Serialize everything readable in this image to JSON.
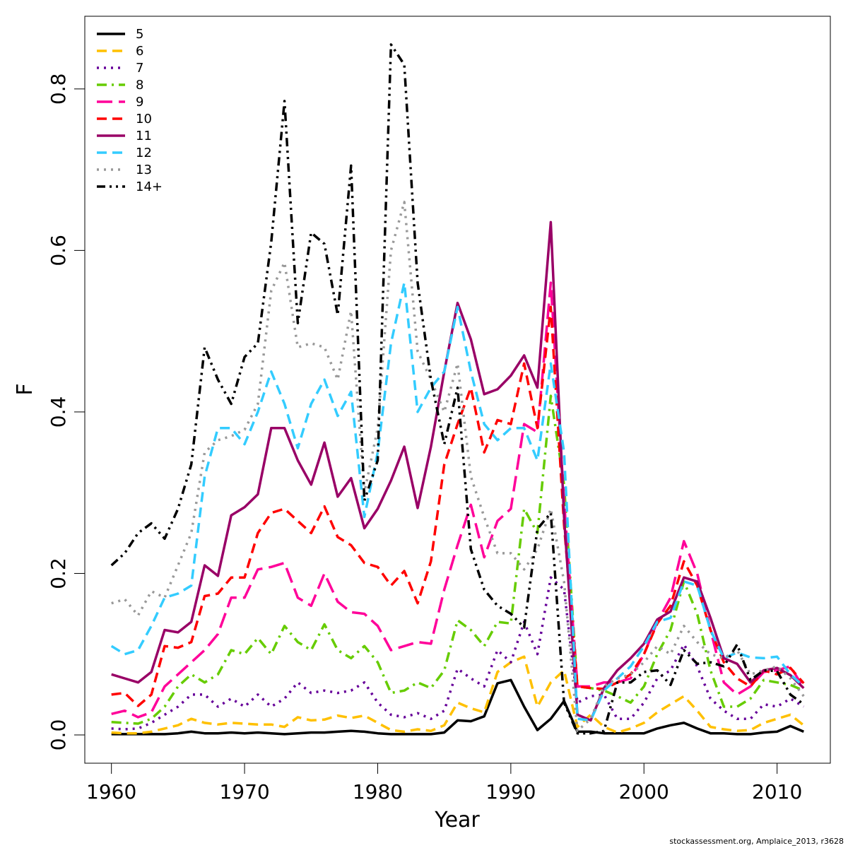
{
  "chart_data": {
    "type": "line",
    "xlabel": "Year",
    "ylabel": "F",
    "xlim": [
      1958,
      2014
    ],
    "ylim": [
      -0.035,
      0.89
    ],
    "x_ticks": [
      1960,
      1970,
      1980,
      1990,
      2000,
      2010
    ],
    "y_ticks": [
      0.0,
      0.2,
      0.4,
      0.6,
      0.8
    ],
    "y_tick_labels": [
      "0.0",
      "0.2",
      "0.4",
      "0.6",
      "0.8"
    ],
    "grid": false,
    "legend_position": "top-left",
    "footnote": "stockassessment.org, Amplaice_2013, r3628",
    "x": [
      1960,
      1961,
      1962,
      1963,
      1964,
      1965,
      1966,
      1967,
      1968,
      1969,
      1970,
      1971,
      1972,
      1973,
      1974,
      1975,
      1976,
      1977,
      1978,
      1979,
      1980,
      1981,
      1982,
      1983,
      1984,
      1985,
      1986,
      1987,
      1988,
      1989,
      1990,
      1991,
      1992,
      1993,
      1994,
      1995,
      1996,
      1997,
      1998,
      1999,
      2000,
      2001,
      2002,
      2003,
      2004,
      2005,
      2006,
      2007,
      2008,
      2009,
      2010,
      2011,
      2012
    ],
    "series": [
      {
        "name": "5",
        "color": "#000000",
        "dash": "solid",
        "values": [
          0.001,
          0.001,
          0.001,
          0.001,
          0.001,
          0.002,
          0.004,
          0.002,
          0.002,
          0.003,
          0.002,
          0.003,
          0.002,
          0.001,
          0.002,
          0.003,
          0.003,
          0.004,
          0.005,
          0.004,
          0.002,
          0.001,
          0.001,
          0.001,
          0.001,
          0.003,
          0.018,
          0.017,
          0.023,
          0.064,
          0.068,
          0.035,
          0.006,
          0.02,
          0.042,
          0.004,
          0.004,
          0.002,
          0.002,
          0.002,
          0.002,
          0.008,
          0.012,
          0.015,
          0.008,
          0.002,
          0.002,
          0.001,
          0.001,
          0.003,
          0.004,
          0.011,
          0.004
        ]
      },
      {
        "name": "6",
        "color": "#ffc000",
        "dash": "dash",
        "values": [
          0.003,
          0.002,
          0.002,
          0.004,
          0.008,
          0.012,
          0.02,
          0.015,
          0.013,
          0.015,
          0.014,
          0.013,
          0.013,
          0.01,
          0.022,
          0.018,
          0.019,
          0.024,
          0.021,
          0.024,
          0.015,
          0.006,
          0.004,
          0.007,
          0.005,
          0.012,
          0.04,
          0.033,
          0.028,
          0.078,
          0.09,
          0.097,
          0.035,
          0.065,
          0.08,
          0.01,
          0.025,
          0.01,
          0.003,
          0.008,
          0.015,
          0.028,
          0.038,
          0.048,
          0.03,
          0.01,
          0.007,
          0.005,
          0.006,
          0.015,
          0.02,
          0.025,
          0.012
        ]
      },
      {
        "name": "7",
        "color": "#660099",
        "dash": "dot",
        "values": [
          0.008,
          0.007,
          0.008,
          0.015,
          0.025,
          0.035,
          0.05,
          0.05,
          0.035,
          0.045,
          0.035,
          0.05,
          0.035,
          0.045,
          0.065,
          0.052,
          0.055,
          0.052,
          0.055,
          0.065,
          0.04,
          0.025,
          0.022,
          0.027,
          0.02,
          0.03,
          0.082,
          0.07,
          0.06,
          0.105,
          0.09,
          0.14,
          0.1,
          0.195,
          0.18,
          0.04,
          0.048,
          0.05,
          0.02,
          0.02,
          0.04,
          0.07,
          0.08,
          0.112,
          0.085,
          0.045,
          0.03,
          0.02,
          0.02,
          0.038,
          0.035,
          0.045,
          0.035
        ]
      },
      {
        "name": "8",
        "color": "#66cc00",
        "dash": "dashdot",
        "values": [
          0.016,
          0.015,
          0.014,
          0.02,
          0.035,
          0.06,
          0.075,
          0.065,
          0.075,
          0.105,
          0.1,
          0.12,
          0.1,
          0.135,
          0.115,
          0.105,
          0.137,
          0.105,
          0.095,
          0.11,
          0.09,
          0.052,
          0.055,
          0.065,
          0.058,
          0.08,
          0.142,
          0.13,
          0.11,
          0.14,
          0.138,
          0.28,
          0.25,
          0.42,
          0.31,
          0.06,
          0.058,
          0.055,
          0.048,
          0.04,
          0.06,
          0.1,
          0.13,
          0.19,
          0.15,
          0.08,
          0.035,
          0.035,
          0.045,
          0.068,
          0.065,
          0.062,
          0.055
        ]
      },
      {
        "name": "9",
        "color": "#ff0099",
        "dash": "longdash",
        "values": [
          0.026,
          0.03,
          0.022,
          0.028,
          0.06,
          0.075,
          0.09,
          0.105,
          0.125,
          0.17,
          0.17,
          0.205,
          0.208,
          0.213,
          0.17,
          0.16,
          0.2,
          0.165,
          0.152,
          0.15,
          0.135,
          0.105,
          0.11,
          0.115,
          0.113,
          0.18,
          0.235,
          0.285,
          0.22,
          0.265,
          0.28,
          0.385,
          0.375,
          0.56,
          0.29,
          0.06,
          0.06,
          0.065,
          0.065,
          0.07,
          0.1,
          0.14,
          0.17,
          0.24,
          0.2,
          0.13,
          0.065,
          0.05,
          0.06,
          0.078,
          0.08,
          0.085,
          0.058
        ]
      },
      {
        "name": "10",
        "color": "#ff0000",
        "dash": "dash",
        "values": [
          0.05,
          0.052,
          0.036,
          0.05,
          0.11,
          0.108,
          0.115,
          0.172,
          0.175,
          0.195,
          0.195,
          0.25,
          0.275,
          0.28,
          0.265,
          0.25,
          0.283,
          0.245,
          0.235,
          0.213,
          0.208,
          0.185,
          0.203,
          0.163,
          0.215,
          0.335,
          0.385,
          0.43,
          0.35,
          0.39,
          0.385,
          0.46,
          0.38,
          0.53,
          0.26,
          0.06,
          0.058,
          0.057,
          0.065,
          0.075,
          0.1,
          0.138,
          0.16,
          0.215,
          0.185,
          0.13,
          0.09,
          0.07,
          0.06,
          0.08,
          0.075,
          0.083,
          0.064
        ]
      },
      {
        "name": "11",
        "color": "#990066",
        "dash": "solid",
        "values": [
          0.075,
          0.07,
          0.065,
          0.078,
          0.13,
          0.127,
          0.14,
          0.21,
          0.197,
          0.272,
          0.282,
          0.298,
          0.38,
          0.38,
          0.34,
          0.31,
          0.362,
          0.295,
          0.318,
          0.256,
          0.28,
          0.315,
          0.357,
          0.281,
          0.357,
          0.45,
          0.535,
          0.49,
          0.422,
          0.428,
          0.445,
          0.47,
          0.43,
          0.635,
          0.27,
          0.025,
          0.018,
          0.058,
          0.08,
          0.095,
          0.113,
          0.143,
          0.153,
          0.195,
          0.19,
          0.145,
          0.095,
          0.088,
          0.065,
          0.08,
          0.083,
          0.074,
          0.058
        ]
      },
      {
        "name": "12",
        "color": "#33ccff",
        "dash": "dash",
        "values": [
          0.11,
          0.1,
          0.105,
          0.135,
          0.17,
          0.175,
          0.185,
          0.32,
          0.38,
          0.38,
          0.36,
          0.4,
          0.45,
          0.41,
          0.355,
          0.41,
          0.44,
          0.395,
          0.425,
          0.27,
          0.35,
          0.485,
          0.56,
          0.4,
          0.43,
          0.45,
          0.53,
          0.45,
          0.385,
          0.365,
          0.38,
          0.38,
          0.34,
          0.46,
          0.35,
          0.02,
          0.018,
          0.055,
          0.07,
          0.085,
          0.11,
          0.14,
          0.145,
          0.19,
          0.185,
          0.13,
          0.095,
          0.102,
          0.096,
          0.095,
          0.097,
          0.075,
          0.06
        ]
      },
      {
        "name": "13",
        "color": "#999999",
        "dash": "dot",
        "values": [
          0.163,
          0.168,
          0.148,
          0.178,
          0.17,
          0.21,
          0.25,
          0.35,
          0.365,
          0.37,
          0.378,
          0.41,
          0.55,
          0.585,
          0.48,
          0.485,
          0.48,
          0.44,
          0.525,
          0.3,
          0.38,
          0.6,
          0.66,
          0.475,
          0.44,
          0.4,
          0.46,
          0.32,
          0.27,
          0.225,
          0.225,
          0.205,
          0.23,
          0.28,
          0.19,
          0.005,
          0.02,
          0.06,
          0.07,
          0.075,
          0.09,
          0.11,
          0.1,
          0.135,
          0.115,
          0.1,
          0.095,
          0.105,
          0.075,
          0.08,
          0.085,
          0.07,
          0.048
        ]
      },
      {
        "name": "14+",
        "color": "#000000",
        "dash": "dashdotdot",
        "values": [
          0.21,
          0.225,
          0.25,
          0.262,
          0.243,
          0.28,
          0.335,
          0.48,
          0.44,
          0.41,
          0.468,
          0.485,
          0.61,
          0.785,
          0.51,
          0.622,
          0.608,
          0.52,
          0.705,
          0.29,
          0.34,
          0.855,
          0.83,
          0.56,
          0.44,
          0.36,
          0.43,
          0.23,
          0.18,
          0.16,
          0.15,
          0.133,
          0.255,
          0.275,
          0.04,
          0.002,
          0.002,
          0.005,
          0.065,
          0.065,
          0.078,
          0.08,
          0.062,
          0.105,
          0.088,
          0.09,
          0.085,
          0.112,
          0.068,
          0.08,
          0.079,
          0.05,
          0.038
        ]
      }
    ]
  }
}
